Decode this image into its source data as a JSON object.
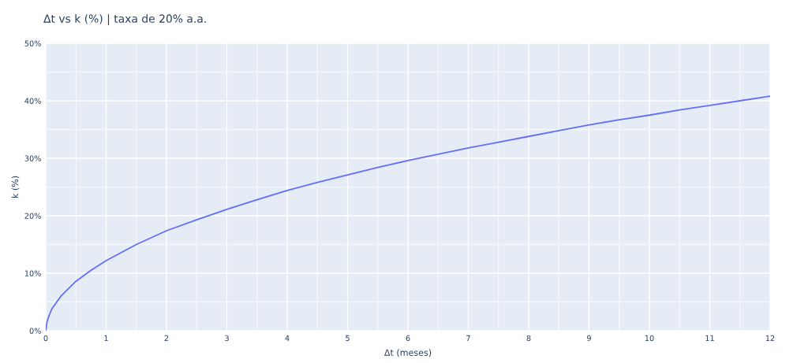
{
  "chart_data": {
    "type": "line",
    "title": "Δt vs k (%) | taxa de 20% a.a.",
    "xlabel": "Δt (meses)",
    "ylabel": "k (%)",
    "x": [
      0,
      0.02,
      0.05,
      0.1,
      0.25,
      0.5,
      0.75,
      1,
      1.5,
      2,
      2.5,
      3,
      3.5,
      4,
      4.5,
      5,
      5.5,
      6,
      6.5,
      7,
      7.5,
      8,
      8.5,
      9,
      9.5,
      10,
      10.5,
      11,
      11.5,
      12
    ],
    "series": [
      {
        "color": "#636efa",
        "values": [
          0,
          1.5,
          2.5,
          3.8,
          6,
          8.6,
          10.5,
          12.2,
          15,
          17.4,
          19.3,
          21.1,
          22.8,
          24.4,
          25.8,
          27.1,
          28.4,
          29.6,
          30.7,
          31.8,
          32.8,
          33.8,
          34.8,
          35.8,
          36.7,
          37.5,
          38.4,
          39.2,
          40.0,
          40.8
        ]
      }
    ],
    "xlim": [
      0,
      12
    ],
    "ylim": [
      0,
      50
    ],
    "xticks": [
      0,
      1,
      2,
      3,
      4,
      5,
      6,
      7,
      8,
      9,
      10,
      11,
      12,
      {
        "value": 0.5,
        "label": null
      },
      {
        "value": 1.5,
        "label": null
      },
      {
        "value": 2.5,
        "label": null
      },
      {
        "value": 3.5,
        "label": null
      },
      {
        "value": 4.5,
        "label": null
      },
      {
        "value": 5.5,
        "label": null
      },
      {
        "value": 6.5,
        "label": null
      },
      {
        "value": 7.5,
        "label": null
      },
      {
        "value": 8.5,
        "label": null
      },
      {
        "value": 9.5,
        "label": null
      },
      {
        "value": 10.5,
        "label": null
      },
      {
        "value": 11.5,
        "label": null
      }
    ],
    "yticks": [
      {
        "value": 0,
        "label": "0%"
      },
      {
        "value": 10,
        "label": "10%"
      },
      {
        "value": 20,
        "label": "20%"
      },
      {
        "value": 30,
        "label": "30%"
      },
      {
        "value": 40,
        "label": "40%"
      },
      {
        "value": 50,
        "label": "50%"
      },
      {
        "value": 5,
        "label": null
      },
      {
        "value": 15,
        "label": null
      },
      {
        "value": 25,
        "label": null
      },
      {
        "value": 35,
        "label": null
      },
      {
        "value": 45,
        "label": null
      }
    ],
    "grid": true,
    "legend": false
  }
}
